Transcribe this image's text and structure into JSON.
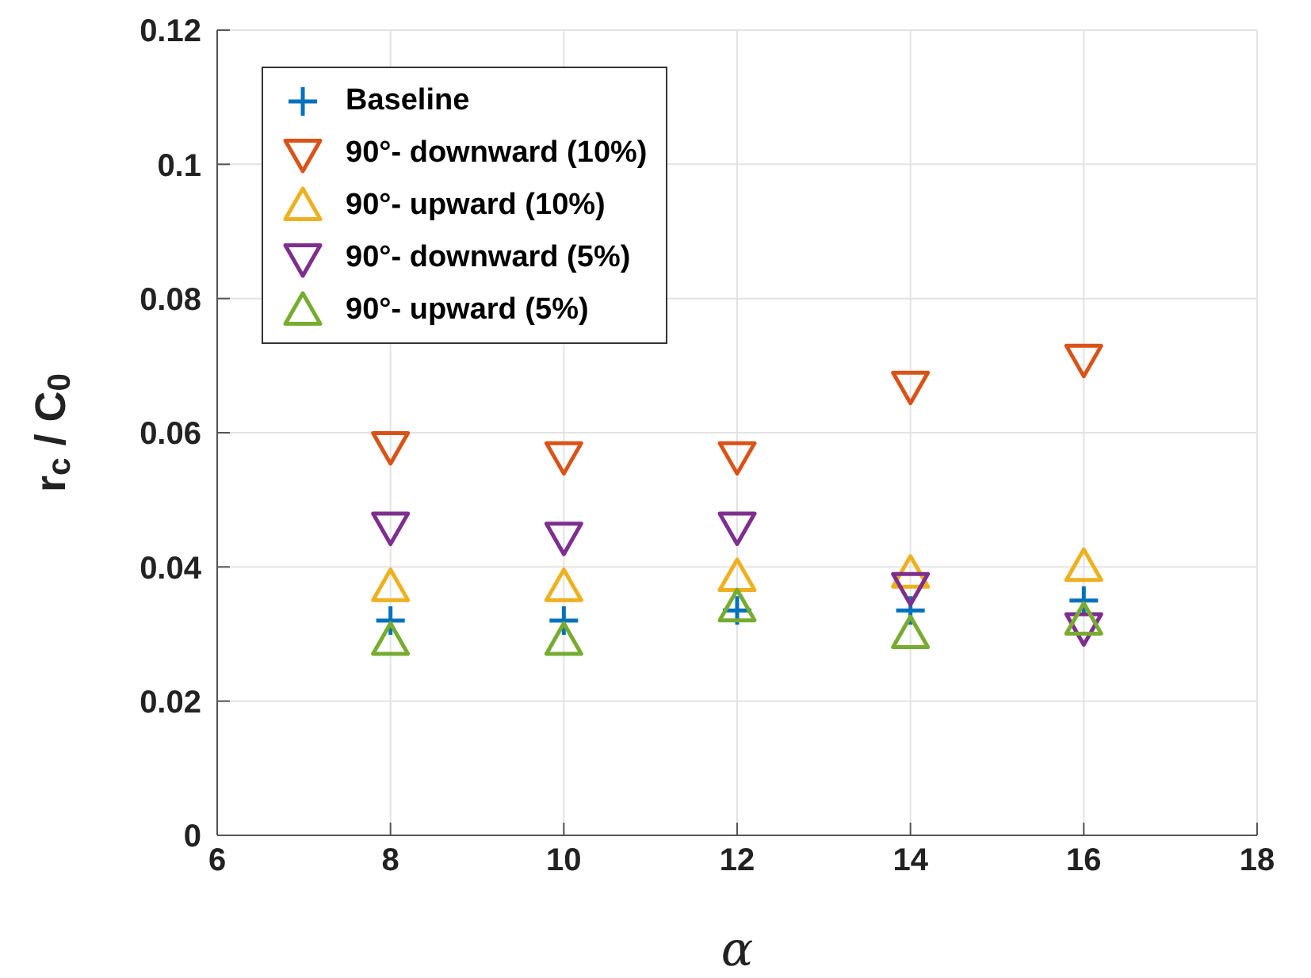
{
  "chart_data": {
    "type": "scatter",
    "xlabel": "α",
    "ylabel": "r$_{c}$ / C$_{0}$",
    "x": [
      8,
      10,
      12,
      14,
      16
    ],
    "series": [
      {
        "name": "Baseline",
        "color": "#0072bd",
        "marker": "cross",
        "values": [
          0.032,
          0.032,
          0.0335,
          0.0335,
          0.035
        ]
      },
      {
        "name": "90°- downward (10%)",
        "color": "#d95319",
        "marker": "triangle-down",
        "values": [
          0.058,
          0.0565,
          0.0565,
          0.067,
          0.071
        ]
      },
      {
        "name": "90°- upward (10%)",
        "color": "#edb120",
        "marker": "triangle",
        "values": [
          0.037,
          0.037,
          0.0385,
          0.039,
          0.04
        ]
      },
      {
        "name": "90°- downward (5%)",
        "color": "#7e2f8e",
        "marker": "triangle-down",
        "values": [
          0.046,
          0.0445,
          0.046,
          0.037,
          0.031
        ]
      },
      {
        "name": "90°- upward (5%)",
        "color": "#77ac30",
        "marker": "triangle",
        "values": [
          0.029,
          0.029,
          0.034,
          0.03,
          0.032
        ]
      }
    ],
    "xlim": [
      6,
      18
    ],
    "xticks": [
      6,
      8,
      10,
      12,
      14,
      16,
      18
    ],
    "ylim": [
      0,
      0.12
    ],
    "yticks": [
      0,
      0.02,
      0.04,
      0.06,
      0.08,
      0.1,
      0.12
    ],
    "grid": true,
    "legend": "top left"
  }
}
